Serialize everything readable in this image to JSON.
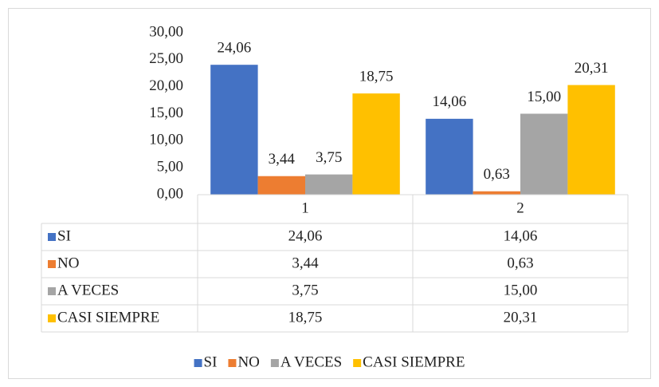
{
  "chart_data": {
    "type": "bar",
    "categories": [
      "1",
      "2"
    ],
    "series": [
      {
        "name": "SI",
        "color": "#4472c4",
        "values": [
          24.06,
          14.06
        ],
        "value_labels": [
          "24,06",
          "14,06"
        ]
      },
      {
        "name": "NO",
        "color": "#ed7d31",
        "values": [
          3.44,
          0.63
        ],
        "value_labels": [
          "3,44",
          "0,63"
        ]
      },
      {
        "name": "A VECES",
        "color": "#a5a5a5",
        "values": [
          3.75,
          15.0
        ],
        "value_labels": [
          "3,75",
          "15,00"
        ]
      },
      {
        "name": "CASI SIEMPRE",
        "color": "#ffc000",
        "values": [
          18.75,
          20.31
        ],
        "value_labels": [
          "18,75",
          "20,31"
        ]
      }
    ],
    "ylim": [
      0,
      30
    ],
    "yticks": [
      {
        "value": 0,
        "label": "0,00"
      },
      {
        "value": 5,
        "label": "5,00"
      },
      {
        "value": 10,
        "label": "10,00"
      },
      {
        "value": 15,
        "label": "15,00"
      },
      {
        "value": 20,
        "label": "20,00"
      },
      {
        "value": 25,
        "label": "25,00"
      },
      {
        "value": 30,
        "label": "30,00"
      }
    ],
    "grid": false,
    "legend": "bottom",
    "data_table": true
  }
}
